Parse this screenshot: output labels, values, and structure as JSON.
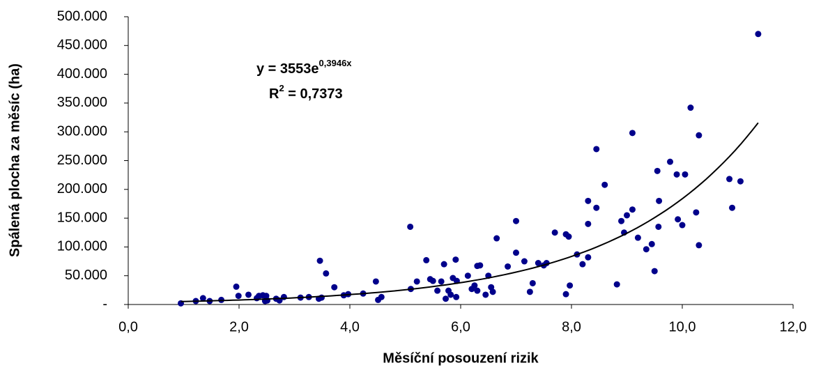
{
  "chart_data": {
    "type": "scatter",
    "x_label": "Měsíční posouzení rizik",
    "y_label": "Spálená plocha za měsíc (ha)",
    "annotation": {
      "equation": "y = 3553e",
      "exponent": "0,3946x",
      "r2_label": "R",
      "r2_power": "2",
      "r2_value": " = 0,7373"
    },
    "trendline": {
      "a": 3553,
      "b": 0.3946,
      "x_range": [
        0.95,
        11.37
      ],
      "color": "#000000"
    },
    "xlim": [
      0,
      12
    ],
    "xticks": [
      {
        "value": 0,
        "label": "0,0"
      },
      {
        "value": 2,
        "label": "2,0"
      },
      {
        "value": 4,
        "label": "4,0"
      },
      {
        "value": 6,
        "label": "6,0"
      },
      {
        "value": 8,
        "label": "8,0"
      },
      {
        "value": 10,
        "label": "10,0"
      },
      {
        "value": 12,
        "label": "12,0"
      }
    ],
    "ylim": [
      0,
      500000
    ],
    "yticks": [
      {
        "value": 0,
        "label": "-"
      },
      {
        "value": 50000,
        "label": "50.000"
      },
      {
        "value": 100000,
        "label": "100.000"
      },
      {
        "value": 150000,
        "label": "150.000"
      },
      {
        "value": 200000,
        "label": "200.000"
      },
      {
        "value": 250000,
        "label": "250.000"
      },
      {
        "value": 300000,
        "label": "300.000"
      },
      {
        "value": 350000,
        "label": "350.000"
      },
      {
        "value": 400000,
        "label": "400.000"
      },
      {
        "value": 450000,
        "label": "450.000"
      },
      {
        "value": 500000,
        "label": "500.000"
      }
    ],
    "grid": false,
    "series": [
      {
        "color": "#00008b",
        "x": [
          0.95,
          1.22,
          1.35,
          1.47,
          1.68,
          1.95,
          1.99,
          2.17,
          2.32,
          2.36,
          2.43,
          2.47,
          2.49,
          2.51,
          2.67,
          2.73,
          2.81,
          3.11,
          3.26,
          3.44,
          3.46,
          3.49,
          3.57,
          3.72,
          3.89,
          3.97,
          4.24,
          4.47,
          4.51,
          4.57,
          5.09,
          5.1,
          5.21,
          5.38,
          5.45,
          5.5,
          5.58,
          5.65,
          5.7,
          5.73,
          5.78,
          5.82,
          5.86,
          5.91,
          5.92,
          5.93,
          6.13,
          6.2,
          6.25,
          6.3,
          6.35,
          6.3,
          6.45,
          6.5,
          6.55,
          6.58,
          6.65,
          6.85,
          7.0,
          7.0,
          7.15,
          7.25,
          7.3,
          7.4,
          7.5,
          7.55,
          7.7,
          7.9,
          7.95,
          7.9,
          7.97,
          8.1,
          8.2,
          8.3,
          8.3,
          8.3,
          8.45,
          8.45,
          8.6,
          8.82,
          8.9,
          8.95,
          9.0,
          9.1,
          9.1,
          9.2,
          9.35,
          9.45,
          9.5,
          9.55,
          9.57,
          9.58,
          9.78,
          9.9,
          9.92,
          10.0,
          10.05,
          10.15,
          10.25,
          10.3,
          10.3,
          10.85,
          10.9,
          11.05,
          11.37
        ],
        "values": [
          2000,
          6000,
          11000,
          6000,
          8000,
          31000,
          15000,
          17000,
          11000,
          15000,
          16000,
          6000,
          15000,
          7000,
          10000,
          7000,
          13000,
          12000,
          13000,
          10000,
          76000,
          12000,
          54000,
          30000,
          16000,
          18000,
          19000,
          40000,
          8000,
          13000,
          135000,
          27000,
          40000,
          77000,
          44000,
          41000,
          24000,
          40000,
          70000,
          10000,
          24000,
          17000,
          46000,
          78000,
          13000,
          41000,
          50000,
          27000,
          33000,
          67000,
          68000,
          24000,
          17000,
          50000,
          30000,
          22000,
          115000,
          66000,
          145000,
          90000,
          75000,
          22000,
          37000,
          72000,
          68000,
          72000,
          125000,
          122000,
          118000,
          18000,
          33000,
          87000,
          70000,
          140000,
          180000,
          82000,
          270000,
          168000,
          208000,
          35000,
          145000,
          125000,
          155000,
          165000,
          298000,
          116000,
          96000,
          105000,
          58000,
          232000,
          135000,
          180000,
          248000,
          226000,
          148000,
          138000,
          226000,
          342000,
          160000,
          103000,
          294000,
          218000,
          168000,
          214000,
          470000
        ]
      }
    ]
  }
}
